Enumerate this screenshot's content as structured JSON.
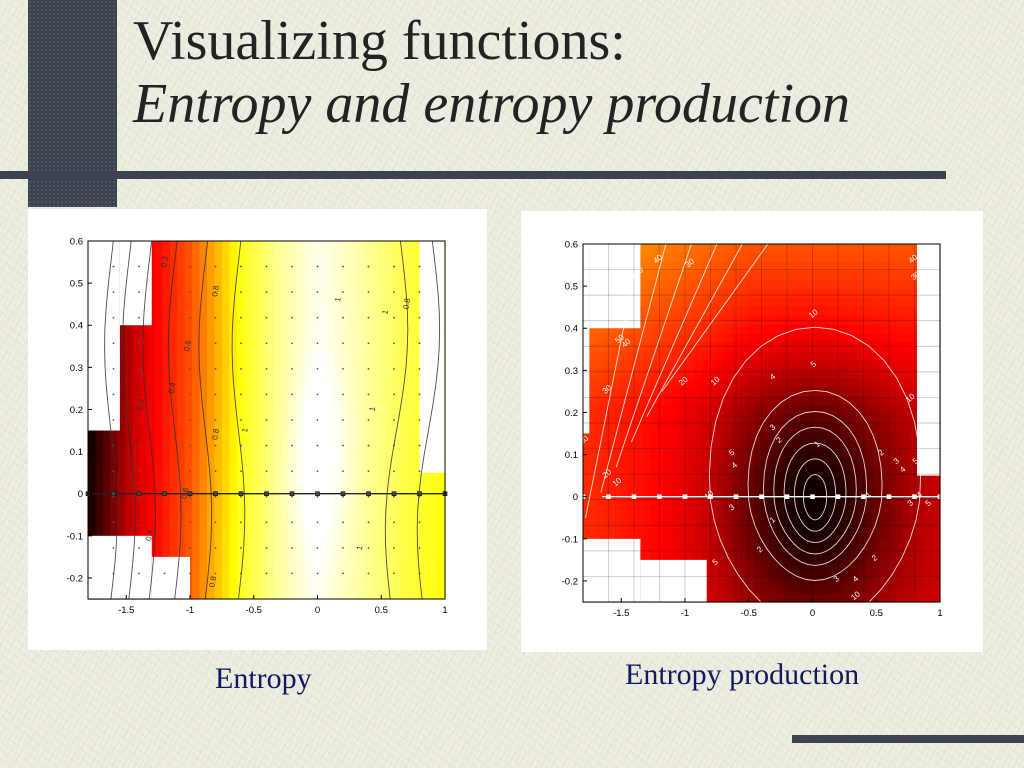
{
  "slide": {
    "title_line1": "Visualizing functions:",
    "title_line2": "Entropy and entropy production",
    "caption_left": "Entropy",
    "caption_right": "Entropy production"
  },
  "colors": {
    "accent_bar": "#3c4250",
    "caption": "#101a5c",
    "background": "#ecebdf"
  },
  "chart_data": [
    {
      "type": "heatmap",
      "title": "",
      "xlabel": "",
      "ylabel": "",
      "xlim": [
        -1.8,
        1.0
      ],
      "ylim": [
        -0.25,
        0.6
      ],
      "x_ticks": [
        -1.5,
        -1,
        -0.5,
        0,
        0.5,
        1
      ],
      "x_tick_labels": [
        "-1.5",
        "-1",
        "-0.5",
        "0",
        "0.5",
        "1"
      ],
      "y_ticks": [
        -0.2,
        -0.1,
        0,
        0.1,
        0.2,
        0.3,
        0.4,
        0.5,
        0.6
      ],
      "y_tick_labels": [
        "-0.2",
        "-0.1",
        "0",
        "0.1",
        "0.2",
        "0.3",
        "0.4",
        "0.5",
        "0.6"
      ],
      "colormap": "hot",
      "contour_labels": [
        "0.3",
        "0.2",
        "0.4",
        "0.6",
        "0.8",
        "0.8",
        "0.6",
        "0.4",
        "0.8",
        "1",
        "1",
        "1",
        "1",
        "1",
        "0.8"
      ],
      "line_y": 0,
      "grid_points": "dotted",
      "excluded_regions": "white (outside domain)"
    },
    {
      "type": "heatmap",
      "title": "",
      "xlabel": "",
      "ylabel": "",
      "xlim": [
        -1.8,
        1.0
      ],
      "ylim": [
        -0.25,
        0.6
      ],
      "x_ticks": [
        -1.5,
        -1,
        -0.5,
        0,
        0.5,
        1
      ],
      "x_tick_labels": [
        "-1.5",
        "-1",
        "-0.5",
        "0",
        "0.5",
        "1"
      ],
      "y_ticks": [
        -0.2,
        -0.1,
        0,
        0.1,
        0.2,
        0.3,
        0.4,
        0.5,
        0.6
      ],
      "y_tick_labels": [
        "-0.2",
        "-0.1",
        "0",
        "0.1",
        "0.2",
        "0.3",
        "0.4",
        "0.5",
        "0.6"
      ],
      "colormap": "hot",
      "contour_labels": [
        "50",
        "40",
        "30",
        "20",
        "10",
        "40",
        "30",
        "50",
        "40",
        "30",
        "30",
        "20",
        "10",
        "10",
        "10",
        "10",
        "5",
        "4",
        "3",
        "2",
        "1",
        "5",
        "4",
        "3",
        "2",
        "1",
        "2",
        "3",
        "4",
        "5",
        "5",
        "4",
        "3",
        "2",
        "1",
        "3",
        "4",
        "5",
        "10"
      ],
      "line_y": 0,
      "grid": true,
      "excluded_regions": "white (outside domain)"
    }
  ]
}
